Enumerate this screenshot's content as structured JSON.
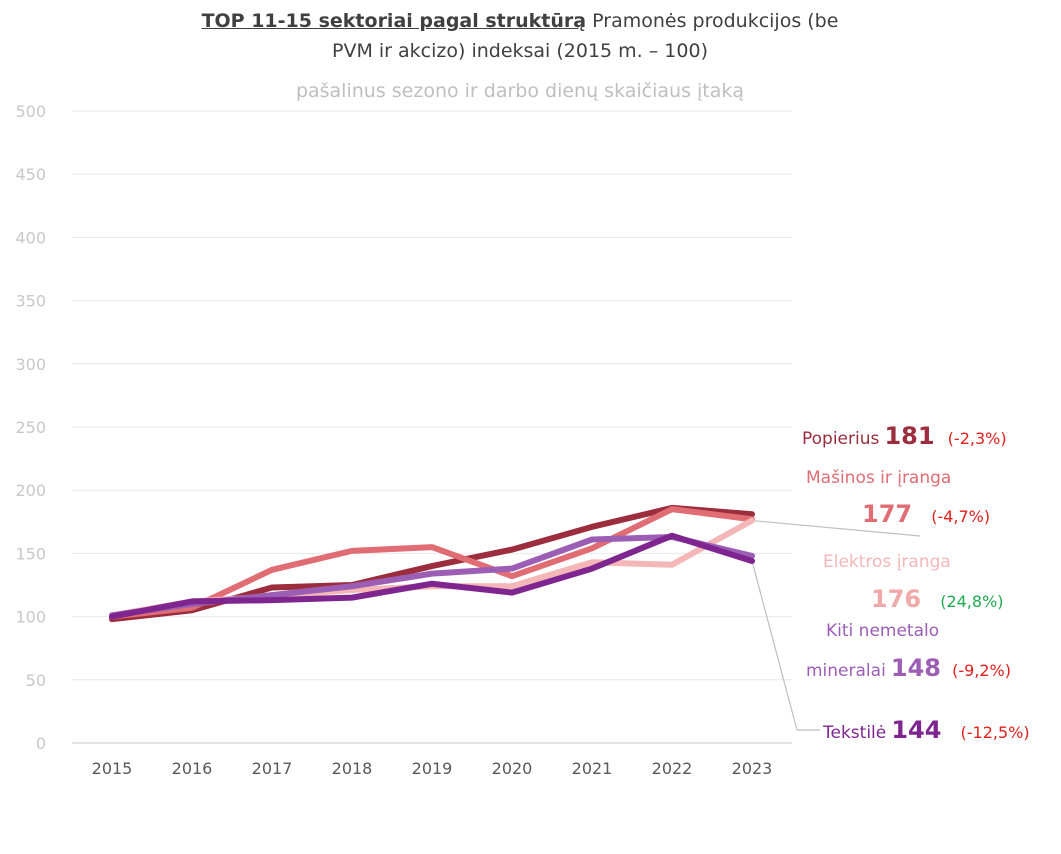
{
  "title": {
    "bold": "TOP 11-15 sektoriai pagal struktūrą",
    "rest_line1": " Pramonės produkcijos (be",
    "line2": "PVM ir akcizo) indeksai (2015 m. – 100)",
    "subtitle": "pašalinus sezono ir darbo dienų skaičiaus įtaką"
  },
  "chart_data": {
    "type": "line",
    "title": "TOP 11-15 sektoriai pagal struktūrą Pramonės produkcijos (be PVM ir akcizo) indeksai (2015 m. – 100)",
    "subtitle": "pašalinus sezono ir darbo dienų skaičiaus įtaką",
    "x": [
      "2015",
      "2016",
      "2017",
      "2018",
      "2019",
      "2020",
      "2021",
      "2022",
      "2023"
    ],
    "ylim": [
      0,
      500
    ],
    "yticks": [
      "0",
      "50",
      "100",
      "150",
      "200",
      "250",
      "300",
      "350",
      "400",
      "450",
      "500"
    ],
    "grid": true,
    "series": [
      {
        "name": "Popierius",
        "color": "#9b2d3c",
        "values": [
          98,
          105,
          123,
          125,
          140,
          153,
          171,
          186,
          181
        ]
      },
      {
        "name": "Mašinos ir įranga",
        "color": "#e06c74",
        "values": [
          100,
          107,
          137,
          152,
          155,
          132,
          154,
          185,
          177
        ]
      },
      {
        "name": "Elektros įranga",
        "color": "#f4b6b6",
        "values": [
          101,
          112,
          116,
          121,
          124,
          124,
          143,
          141,
          176
        ]
      },
      {
        "name": "Kiti nemetalo mineralai",
        "color": "#9c5eb5",
        "values": [
          101,
          110,
          117,
          124,
          134,
          138,
          161,
          163,
          148
        ]
      },
      {
        "name": "Tekstilė",
        "color": "#7e2590",
        "values": [
          100,
          112,
          113,
          115,
          126,
          119,
          138,
          164,
          144
        ]
      }
    ],
    "annotations": [
      {
        "label": "Popierius",
        "value": "181",
        "change": "(-2,3%)",
        "label_color": "#9b2d3c",
        "value_color": "#9b2d3c",
        "change_color": "#e0201c"
      },
      {
        "label": "Mašinos ir įranga",
        "value": "177",
        "change": "(-4,7%)",
        "label_color": "#e06c74",
        "value_color": "#e06c74",
        "change_color": "#e0201c"
      },
      {
        "label": "Elektros įranga",
        "value": "176",
        "change": "(24,8%)",
        "label_color": "#f4b6b6",
        "value_color": "#f0a8a8",
        "change_color": "#1faa4f"
      },
      {
        "label_line1": "Kiti nemetalo",
        "label_line2": "mineralai",
        "value": "148",
        "change": "(-9,2%)",
        "label_color": "#9c5eb5",
        "value_color": "#9c5eb5",
        "change_color": "#e0201c"
      },
      {
        "label": "Tekstilė",
        "value": "144",
        "change": "(-12,5%)",
        "label_color": "#7e2590",
        "value_color": "#7e2590",
        "change_color": "#e0201c"
      }
    ]
  }
}
